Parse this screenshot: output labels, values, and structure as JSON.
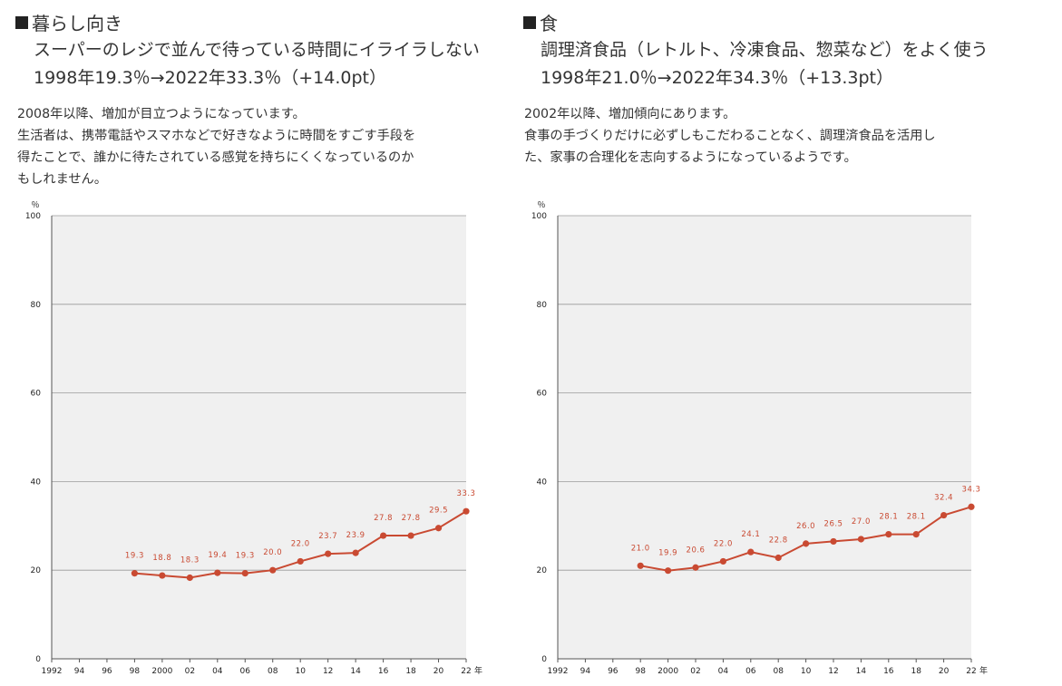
{
  "colors": {
    "line": "#c94a32",
    "plot_bg": "#f0f0f0",
    "grid": "#9a9a9a",
    "axis": "#555555"
  },
  "panels": [
    {
      "category": "暮らし向き",
      "item": "スーパーのレジで並んで待っている時間にイライラしない",
      "stat": "1998年19.3％→2022年33.3％（+14.0pt）",
      "desc": [
        "2008年以降、増加が目立つようになっています。",
        "生活者は、携帯電話やスマホなどで好きなように時間をすごす手段を",
        "得たことで、誰かに待たされている感覚を持ちにくくなっているのか",
        "もしれません。"
      ]
    },
    {
      "category": "食",
      "item": "調理済食品（レトルト、冷凍食品、惣菜など）をよく使う",
      "stat": "1998年21.0％→2022年34.3％（+13.3pt）",
      "desc": [
        "2002年以降、増加傾向にあります。",
        "食事の手づくりだけに必ずしもこだわることなく、調理済食品を活用し",
        "た、家事の合理化を志向するようになっているようです。"
      ]
    }
  ],
  "chart_data": [
    {
      "type": "line",
      "unit": "％",
      "x_unit": "年",
      "ylim": [
        0,
        100
      ],
      "yticks": [
        0,
        20,
        40,
        60,
        80,
        100
      ],
      "xlim": [
        1992,
        2022
      ],
      "xtick_values": [
        1992,
        1994,
        1996,
        1998,
        2000,
        2002,
        2004,
        2006,
        2008,
        2010,
        2012,
        2014,
        2016,
        2018,
        2020,
        2022
      ],
      "xtick_labels": [
        "1992",
        "94",
        "96",
        "98",
        "2000",
        "02",
        "04",
        "06",
        "08",
        "10",
        "12",
        "14",
        "16",
        "18",
        "20",
        "22"
      ],
      "grid": true,
      "x": [
        1998,
        2000,
        2002,
        2004,
        2006,
        2008,
        2010,
        2012,
        2014,
        2016,
        2018,
        2020,
        2022
      ],
      "values": [
        19.3,
        18.8,
        18.3,
        19.4,
        19.3,
        20.0,
        22.0,
        23.7,
        23.9,
        27.8,
        27.8,
        29.5,
        33.3
      ],
      "labels": [
        "19.3",
        "18.8",
        "18.3",
        "19.4",
        "19.3",
        "20.0",
        "22.0",
        "23.7",
        "23.9",
        "27.8",
        "27.8",
        "29.5",
        "33.3"
      ]
    },
    {
      "type": "line",
      "unit": "％",
      "x_unit": "年",
      "ylim": [
        0,
        100
      ],
      "yticks": [
        0,
        20,
        40,
        60,
        80,
        100
      ],
      "xlim": [
        1992,
        2022
      ],
      "xtick_values": [
        1992,
        1994,
        1996,
        1998,
        2000,
        2002,
        2004,
        2006,
        2008,
        2010,
        2012,
        2014,
        2016,
        2018,
        2020,
        2022
      ],
      "xtick_labels": [
        "1992",
        "94",
        "96",
        "98",
        "2000",
        "02",
        "04",
        "06",
        "08",
        "10",
        "12",
        "14",
        "16",
        "18",
        "20",
        "22"
      ],
      "grid": true,
      "x": [
        1998,
        2000,
        2002,
        2004,
        2006,
        2008,
        2010,
        2012,
        2014,
        2016,
        2018,
        2020,
        2022
      ],
      "values": [
        21.0,
        19.9,
        20.6,
        22.0,
        24.1,
        22.8,
        26.0,
        26.5,
        27.0,
        28.1,
        28.1,
        32.4,
        34.3
      ],
      "labels": [
        "21.0",
        "19.9",
        "20.6",
        "22.0",
        "24.1",
        "22.8",
        "26.0",
        "26.5",
        "27.0",
        "28.1",
        "28.1",
        "32.4",
        "34.3"
      ]
    }
  ]
}
